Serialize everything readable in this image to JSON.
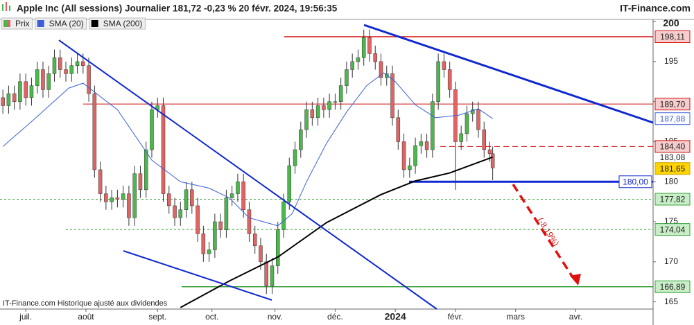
{
  "chart_data": {
    "type": "candlestick",
    "title": "Apple Inc (All sessions) Journalier 181,72 -0,23 % 20 févr. 2024, 19:56:35",
    "brand": "IT-Finance.com",
    "note": "IT-Finance.com Historique ajusté aux dividendes",
    "annotation": "(-8,19%)",
    "price_name": "Prix",
    "up_color": "#4cb84c",
    "down_color": "#e06464",
    "xlim": [
      -1,
      227
    ],
    "xticks": [
      {
        "value": 8,
        "label": "juil."
      },
      {
        "value": 29,
        "label": "août"
      },
      {
        "value": 54,
        "label": "sept."
      },
      {
        "value": 73,
        "label": "oct."
      },
      {
        "value": 95,
        "label": "nov."
      },
      {
        "value": 116,
        "label": "déc."
      },
      {
        "value": 137,
        "label": "2024"
      },
      {
        "value": 158,
        "label": "févr."
      },
      {
        "value": 179,
        "label": "mars"
      },
      {
        "value": 200,
        "label": "avr."
      }
    ],
    "ylim": [
      164.1,
      200.1
    ],
    "yticks": [
      165,
      170,
      175,
      180,
      185,
      190,
      195,
      200
    ],
    "candles": {
      "x": [
        0,
        2,
        4,
        6,
        8,
        10,
        12,
        14,
        16,
        18,
        20,
        22,
        24,
        26,
        28,
        30,
        32,
        34,
        36,
        38,
        40,
        42,
        44,
        46,
        48,
        50,
        52,
        54,
        56,
        58,
        60,
        62,
        64,
        66,
        68,
        70,
        72,
        74,
        76,
        78,
        80,
        82,
        84,
        86,
        88,
        90,
        92,
        94,
        96,
        98,
        100,
        102,
        104,
        106,
        108,
        110,
        112,
        114,
        116,
        118,
        120,
        122,
        124,
        126,
        128,
        130,
        132,
        134,
        136,
        138,
        140,
        142,
        144,
        146,
        148,
        150,
        152,
        154,
        156,
        158,
        160,
        162,
        164,
        166,
        168,
        170,
        171
      ],
      "open": [
        190.5,
        189.5,
        191,
        190,
        192.5,
        190.5,
        192,
        194,
        191.5,
        193.5,
        195.5,
        194,
        193.5,
        194.5,
        195,
        194.5,
        191,
        181.5,
        178.5,
        177.5,
        178,
        177.8,
        178.5,
        175.5,
        181,
        179,
        184,
        189,
        189.5,
        178.5,
        177,
        175.5,
        176.5,
        179,
        177,
        173.5,
        171,
        171.5,
        175,
        174,
        178,
        178.5,
        180,
        176.5,
        173.5,
        172,
        170,
        167,
        169.5,
        174,
        177.5,
        182,
        184,
        186.5,
        189,
        188,
        189.5,
        189,
        190,
        190,
        192,
        194,
        195,
        195.5,
        198,
        196,
        195,
        193,
        193.5,
        188,
        185,
        181.5,
        182,
        184.5,
        185,
        184,
        190,
        195,
        194,
        191.5,
        185,
        186,
        188.5,
        189,
        186.5,
        184,
        183.5
      ],
      "high": [
        191.5,
        192,
        192,
        193.5,
        193.5,
        193,
        195,
        195,
        194.5,
        196.5,
        196.5,
        195,
        195.5,
        196,
        196,
        195.5,
        192,
        182.5,
        179.5,
        179,
        179,
        179.5,
        179.5,
        182,
        182,
        185,
        190,
        190.5,
        190.5,
        179.5,
        178,
        177.5,
        180,
        180,
        178,
        174.5,
        172.5,
        176,
        176,
        179,
        179.5,
        181,
        181,
        177.5,
        174.5,
        173,
        171,
        170.5,
        175,
        178.5,
        183,
        185,
        187.5,
        190,
        190,
        190.5,
        190.5,
        191,
        191,
        193,
        195,
        196,
        196.5,
        199,
        199,
        197,
        196,
        194.5,
        194.5,
        189,
        186,
        183,
        185.5,
        186,
        186,
        191,
        196,
        196,
        195,
        192.5,
        187,
        189.5,
        190,
        190,
        187.5,
        185,
        184.4
      ],
      "low": [
        188.5,
        188.5,
        189,
        189,
        189.5,
        189.5,
        191,
        190.5,
        190.5,
        192.5,
        193,
        192.5,
        192.5,
        193.5,
        193.5,
        190,
        180.5,
        177.5,
        176.5,
        176.5,
        176.8,
        176.8,
        174.5,
        174.5,
        178,
        178,
        183,
        188,
        177.5,
        176,
        174.5,
        174.5,
        175.5,
        176,
        172.5,
        170,
        170,
        170.5,
        173,
        173,
        177,
        177.5,
        175.5,
        172.5,
        171,
        169,
        166,
        166,
        168.5,
        173,
        176.5,
        181,
        183,
        185.5,
        187,
        187,
        188,
        188,
        189,
        189,
        191,
        193,
        194,
        194.5,
        195,
        194,
        192,
        192,
        187,
        184,
        180.5,
        180.5,
        181,
        183.5,
        183,
        183,
        189,
        193,
        190.5,
        179,
        184,
        185,
        187.5,
        185.5,
        183,
        182.5,
        180.2
      ],
      "close": [
        189.5,
        191,
        190,
        192.5,
        190.5,
        192,
        194,
        191.5,
        193.5,
        195.5,
        194,
        193.5,
        194.5,
        195,
        194.5,
        191,
        181.5,
        178.5,
        177.5,
        178,
        177.8,
        178.5,
        175.5,
        181,
        179,
        184,
        189,
        189.5,
        178.5,
        177,
        175.5,
        176.5,
        179,
        177,
        173.5,
        171,
        171.5,
        175,
        174,
        178,
        178.5,
        180,
        176.5,
        173.5,
        172,
        170,
        167,
        169.5,
        174,
        177.5,
        182,
        184,
        186.5,
        189,
        188,
        189.5,
        189,
        190,
        190,
        192,
        194,
        195,
        195.5,
        198,
        196,
        195,
        193,
        193.5,
        188,
        185,
        181.5,
        182,
        184.5,
        185,
        184,
        190,
        195,
        194,
        191.5,
        185,
        186,
        188.5,
        189,
        186.5,
        184,
        183.5,
        181.72
      ]
    },
    "series": [
      {
        "name": "SMA (20)",
        "color": "#3a5fd8",
        "x": [
          0,
          10,
          23,
          28,
          40,
          52,
          62,
          72,
          79,
          86,
          96,
          101,
          106,
          113,
          120,
          127,
          133,
          137,
          144,
          151,
          159,
          166,
          171
        ],
        "values": [
          184.4,
          187.5,
          191.7,
          192.3,
          189,
          182.7,
          180,
          179.2,
          178,
          175.5,
          174.5,
          176,
          180,
          184.8,
          188.7,
          192,
          193.6,
          192.5,
          189.6,
          188,
          188.3,
          189.1,
          187.88
        ]
      },
      {
        "name": "SMA (200)",
        "color": "#000000",
        "x": [
          62,
          79,
          96,
          113,
          132,
          144,
          156,
          171
        ],
        "values": [
          164.3,
          167.6,
          170.6,
          174.9,
          178.4,
          180.1,
          181.1,
          183.08
        ]
      }
    ],
    "levels": [
      {
        "value": 198.11,
        "label": "198,11",
        "line": "solid",
        "color": "#d01010",
        "width": 1.5,
        "tag_bg": "#f6cccc",
        "tag_border": "#d01010",
        "tag_fg": "#222222"
      },
      {
        "value": 189.7,
        "label": "189,70",
        "line": "solid",
        "color": "#d01010",
        "width": 1,
        "tag_bg": "#f6cccc",
        "tag_border": "#d01010",
        "tag_fg": "#222222"
      },
      {
        "value": 187.88,
        "label": "187,88",
        "line": "none",
        "color": "#3a5fd8",
        "width": 1,
        "tag_bg": "#ffffff",
        "tag_border": "#3a5fd8",
        "tag_fg": "#3a5fd8"
      },
      {
        "value": 184.4,
        "label": "184,40",
        "line": "dashed",
        "color": "#d01010",
        "width": 1,
        "tag_bg": "#f6cccc",
        "tag_border": "#d01010",
        "tag_fg": "#222222"
      },
      {
        "value": 183.08,
        "label": "183,08",
        "line": "none",
        "color": "#000000",
        "width": 1,
        "tag_bg": "none",
        "tag_border": "none",
        "tag_fg": "#222222"
      },
      {
        "value": 181.65,
        "label": "181,65",
        "line": "none",
        "color": "#000000",
        "width": 1,
        "tag_bg": "#ffd400",
        "tag_border": "#d0a800",
        "tag_fg": "#222222"
      },
      {
        "value": 180.0,
        "label": "180,00",
        "line": "solid",
        "color": "#1028d0",
        "width": 3,
        "tag_bg": "#ffffff",
        "tag_border": "#1028d0",
        "tag_fg": "#1028d0",
        "tag_side": "left"
      },
      {
        "value": 177.82,
        "label": "177,82",
        "line": "dashed",
        "color": "#3aa03a",
        "width": 1,
        "tag_bg": "#c8eec8",
        "tag_border": "#3aa03a",
        "tag_fg": "#222222"
      },
      {
        "value": 174.04,
        "label": "174,04",
        "line": "dashed",
        "color": "#3aa03a",
        "width": 1,
        "tag_bg": "#c8eec8",
        "tag_border": "#3aa03a",
        "tag_fg": "#222222"
      },
      {
        "value": 166.89,
        "label": "166,89",
        "line": "solid",
        "color": "#3aa03a",
        "width": 1.5,
        "tag_bg": "#c8eec8",
        "tag_border": "#3aa03a",
        "tag_fg": "#222222"
      }
    ]
  }
}
